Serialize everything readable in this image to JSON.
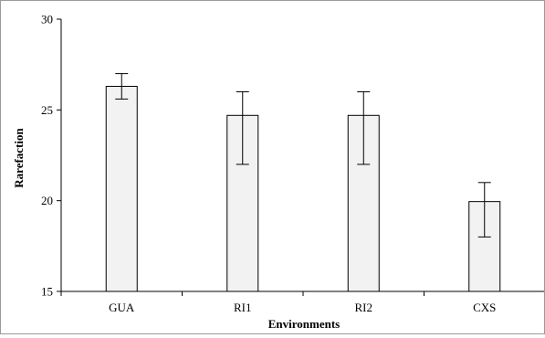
{
  "chart_data": {
    "type": "bar",
    "title": "",
    "xlabel": "Environments",
    "ylabel": "Rarefaction",
    "categories": [
      "GUA",
      "RI1",
      "RI2",
      "CXS"
    ],
    "values": [
      26.3,
      24.7,
      24.7,
      19.95
    ],
    "error_low": [
      25.6,
      22.0,
      22.0,
      18.0
    ],
    "error_high": [
      27.0,
      26.0,
      26.0,
      21.0
    ],
    "ylim": [
      15,
      30
    ],
    "yticks": [
      "15",
      "20",
      "25",
      "30"
    ],
    "grid": false,
    "legend": "none",
    "colors": {
      "bar_fill": "#f2f2f2",
      "bar_stroke": "#000000",
      "axis": "#000000"
    }
  }
}
